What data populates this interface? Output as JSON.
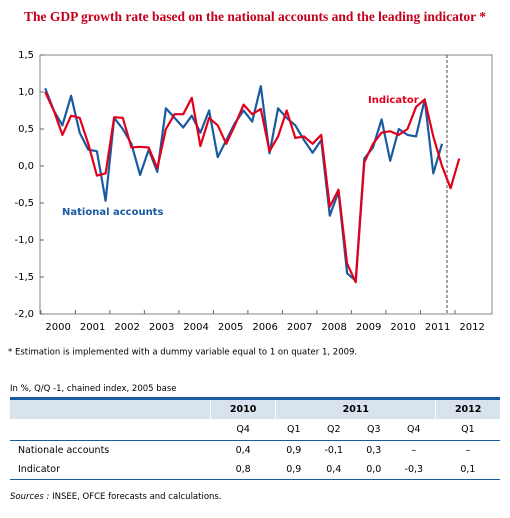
{
  "chart_data": {
    "type": "line",
    "title": "The GDP growth rate based on the national accounts and the leading indicator  *",
    "footnote": "* Estimation is implemented with a dummy variable equal to 1 on quater 1, 2009.",
    "x": [
      2000,
      2000.25,
      2000.5,
      2000.75,
      2001,
      2001.25,
      2001.5,
      2001.75,
      2002,
      2002.25,
      2002.5,
      2002.75,
      2003,
      2003.25,
      2003.5,
      2003.75,
      2004,
      2004.25,
      2004.5,
      2004.75,
      2005,
      2005.25,
      2005.5,
      2005.75,
      2006,
      2006.25,
      2006.5,
      2006.75,
      2007,
      2007.25,
      2007.5,
      2007.75,
      2008,
      2008.25,
      2008.5,
      2008.75,
      2009,
      2009.25,
      2009.5,
      2009.75,
      2010,
      2010.25,
      2010.5,
      2010.75,
      2011,
      2011.25,
      2011.5,
      2011.75,
      2012
    ],
    "series": [
      {
        "name": "National accounts",
        "color": "#1a5aa0",
        "values": [
          1.05,
          0.75,
          0.55,
          0.95,
          0.45,
          0.22,
          0.2,
          -0.47,
          0.65,
          0.5,
          0.3,
          -0.12,
          0.22,
          -0.08,
          0.78,
          0.65,
          0.52,
          0.68,
          0.45,
          0.75,
          0.12,
          0.35,
          0.58,
          0.75,
          0.6,
          1.08,
          0.17,
          0.78,
          0.65,
          0.55,
          0.35,
          0.18,
          0.35,
          -0.67,
          -0.35,
          -1.45,
          -1.55,
          0.1,
          0.25,
          0.63,
          0.07,
          0.5,
          0.42,
          0.4,
          0.9,
          -0.1,
          0.3,
          null,
          null
        ]
      },
      {
        "name": "Indicator",
        "color": "#e3001b",
        "values": [
          1.0,
          0.75,
          0.42,
          0.68,
          0.65,
          0.3,
          -0.13,
          -0.1,
          0.66,
          0.65,
          0.25,
          0.26,
          0.25,
          -0.03,
          0.5,
          0.7,
          0.7,
          0.92,
          0.27,
          0.65,
          0.55,
          0.3,
          0.55,
          0.83,
          0.7,
          0.77,
          0.2,
          0.4,
          0.75,
          0.38,
          0.4,
          0.3,
          0.42,
          -0.55,
          -0.32,
          -1.32,
          -1.57,
          0.05,
          0.3,
          0.45,
          0.47,
          0.42,
          0.5,
          0.8,
          0.9,
          0.4,
          0.0,
          -0.3,
          0.1
        ]
      }
    ],
    "xlim": [
      1999.85,
      2012.95
    ],
    "xticks": [
      2000,
      2001,
      2002,
      2003,
      2004,
      2005,
      2006,
      2007,
      2008,
      2009,
      2010,
      2011,
      2012
    ],
    "ylim": [
      -2,
      1.5
    ],
    "yticks": [
      {
        "value": -2,
        "label": "-2,0"
      },
      {
        "value": -1.5,
        "label": "-1,5"
      },
      {
        "value": -1,
        "label": "-1,0"
      },
      {
        "value": -0.5,
        "label": "-0,5"
      },
      {
        "value": 0,
        "label": "0,0"
      },
      {
        "value": 0.5,
        "label": "0,5"
      },
      {
        "value": 1,
        "label": "1,0"
      },
      {
        "value": 1.5,
        "label": "1,5"
      }
    ],
    "grid": false
  },
  "table": {
    "note": "In %, Q/Q -1, chained index, 2005 base",
    "years": [
      "2010",
      "2011",
      "2012"
    ],
    "quarters": [
      "Q4",
      "Q1",
      "Q2",
      "Q3",
      "Q4",
      "Q1"
    ],
    "rows": [
      [
        "Nationale accounts",
        "0,4",
        "0,9",
        "-0,1",
        "0,3",
        "–",
        "–"
      ],
      [
        "Indicator",
        "0,8",
        "0,9",
        "0,4",
        "0,0",
        "-0,3",
        "0,1"
      ]
    ]
  },
  "sources": {
    "label": "Sources :",
    "text": "INSEE, OFCE forecasts and calculations."
  }
}
